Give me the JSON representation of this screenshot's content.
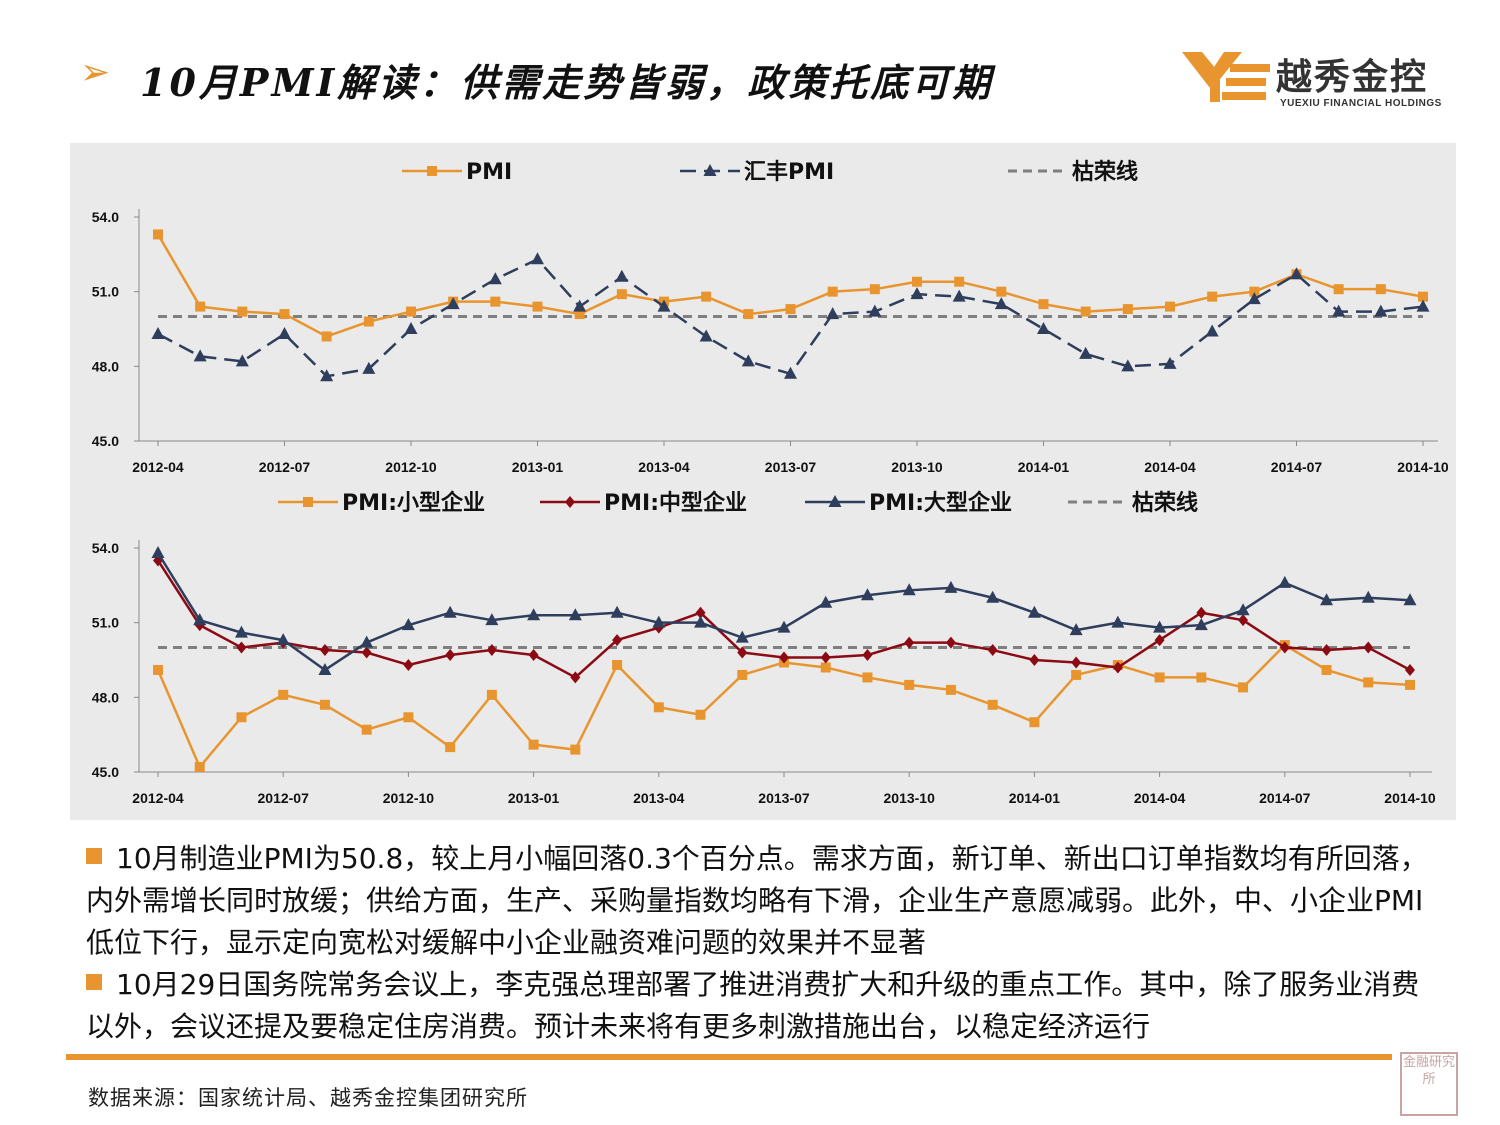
{
  "slide": {
    "arrow": "➢",
    "title": "10月PMI解读：供需走势皆弱，政策托底可期"
  },
  "logo": {
    "name_cn": "越秀金控",
    "name_en": "YUEXIU FINANCIAL HOLDINGS"
  },
  "colors": {
    "accent": "#e8952f",
    "navy": "#2e3e5c",
    "darkred": "#8b0a14",
    "grey": "#7f7f7f"
  },
  "chart_data": [
    {
      "type": "line",
      "title": "",
      "xlabel": "",
      "ylabel": "",
      "ylim": [
        45.0,
        54.0
      ],
      "yticks": [
        "45.0",
        "48.0",
        "51.0",
        "54.0"
      ],
      "xticks": [
        "2012-04",
        "2012-07",
        "2012-10",
        "2013-01",
        "2013-04",
        "2013-07",
        "2013-10",
        "2014-01",
        "2014-04",
        "2014-07",
        "2014-10"
      ],
      "categories": [
        "2012-04",
        "2012-05",
        "2012-06",
        "2012-07",
        "2012-08",
        "2012-09",
        "2012-10",
        "2012-11",
        "2012-12",
        "2013-01",
        "2013-02",
        "2013-03",
        "2013-04",
        "2013-05",
        "2013-06",
        "2013-07",
        "2013-08",
        "2013-09",
        "2013-10",
        "2013-11",
        "2013-12",
        "2014-01",
        "2014-02",
        "2014-03",
        "2014-04",
        "2014-05",
        "2014-06",
        "2014-07",
        "2014-08",
        "2014-09",
        "2014-10"
      ],
      "legend": [
        "PMI",
        "汇丰PMI",
        "枯荣线"
      ],
      "series": [
        {
          "name": "PMI",
          "style": "orange-square",
          "values": [
            53.3,
            50.4,
            50.2,
            50.1,
            49.2,
            49.8,
            50.2,
            50.6,
            50.6,
            50.4,
            50.1,
            50.9,
            50.6,
            50.8,
            50.1,
            50.3,
            51.0,
            51.1,
            51.4,
            51.4,
            51.0,
            50.5,
            50.2,
            50.3,
            50.4,
            50.8,
            51.0,
            51.7,
            51.1,
            51.1,
            50.8
          ]
        },
        {
          "name": "汇丰PMI",
          "style": "navy-triangle-dashed",
          "values": [
            49.3,
            48.4,
            48.2,
            49.3,
            47.6,
            47.9,
            49.5,
            50.5,
            51.5,
            52.3,
            50.4,
            51.6,
            50.4,
            49.2,
            48.2,
            47.7,
            50.1,
            50.2,
            50.9,
            50.8,
            50.5,
            49.5,
            48.5,
            48.0,
            48.1,
            49.4,
            50.7,
            51.7,
            50.2,
            50.2,
            50.4
          ]
        },
        {
          "name": "枯荣线",
          "style": "grey-dashed",
          "values": [
            50,
            50,
            50,
            50,
            50,
            50,
            50,
            50,
            50,
            50,
            50,
            50,
            50,
            50,
            50,
            50,
            50,
            50,
            50,
            50,
            50,
            50,
            50,
            50,
            50,
            50,
            50,
            50,
            50,
            50,
            50
          ]
        }
      ]
    },
    {
      "type": "line",
      "title": "",
      "xlabel": "",
      "ylabel": "",
      "ylim": [
        45.0,
        54.0
      ],
      "yticks": [
        "45.0",
        "48.0",
        "51.0",
        "54.0"
      ],
      "xticks": [
        "2012-04",
        "2012-07",
        "2012-10",
        "2013-01",
        "2013-04",
        "2013-07",
        "2013-10",
        "2014-01",
        "2014-04",
        "2014-07",
        "2014-10"
      ],
      "categories": [
        "2012-04",
        "2012-05",
        "2012-06",
        "2012-07",
        "2012-08",
        "2012-09",
        "2012-10",
        "2012-11",
        "2012-12",
        "2013-01",
        "2013-02",
        "2013-03",
        "2013-04",
        "2013-05",
        "2013-06",
        "2013-07",
        "2013-08",
        "2013-09",
        "2013-10",
        "2013-11",
        "2013-12",
        "2014-01",
        "2014-02",
        "2014-03",
        "2014-04",
        "2014-05",
        "2014-06",
        "2014-07",
        "2014-08",
        "2014-09",
        "2014-10"
      ],
      "legend": [
        "PMI:小型企业",
        "PMI:中型企业",
        "PMI:大型企业",
        "枯荣线"
      ],
      "series": [
        {
          "name": "PMI:小型企业",
          "style": "orange-square",
          "values": [
            49.1,
            45.2,
            47.2,
            48.1,
            47.7,
            46.7,
            47.2,
            46.0,
            48.1,
            46.1,
            45.9,
            49.3,
            47.6,
            47.3,
            48.9,
            49.4,
            49.2,
            48.8,
            48.5,
            48.3,
            47.7,
            47.0,
            48.9,
            49.3,
            48.8,
            48.8,
            48.4,
            50.1,
            49.1,
            48.6,
            48.5
          ]
        },
        {
          "name": "PMI:中型企业",
          "style": "darkred-diamond",
          "values": [
            53.5,
            50.9,
            50.0,
            50.2,
            49.9,
            49.8,
            49.3,
            49.7,
            49.9,
            49.7,
            48.8,
            50.3,
            50.8,
            51.4,
            49.8,
            49.6,
            49.6,
            49.7,
            50.2,
            50.2,
            49.9,
            49.5,
            49.4,
            49.2,
            50.3,
            51.4,
            51.1,
            50.0,
            49.9,
            50.0,
            49.1
          ]
        },
        {
          "name": "PMI:大型企业",
          "style": "navy-triangle",
          "values": [
            53.8,
            51.1,
            50.6,
            50.3,
            49.1,
            50.2,
            50.9,
            51.4,
            51.1,
            51.3,
            51.3,
            51.4,
            51.0,
            51.0,
            50.4,
            50.8,
            51.8,
            52.1,
            52.3,
            52.4,
            52.0,
            51.4,
            50.7,
            51.0,
            50.8,
            50.9,
            51.5,
            52.6,
            51.9,
            52.0,
            51.9
          ]
        },
        {
          "name": "枯荣线",
          "style": "grey-dashed",
          "values": [
            50,
            50,
            50,
            50,
            50,
            50,
            50,
            50,
            50,
            50,
            50,
            50,
            50,
            50,
            50,
            50,
            50,
            50,
            50,
            50,
            50,
            50,
            50,
            50,
            50,
            50,
            50,
            50,
            50,
            50,
            50
          ]
        }
      ]
    }
  ],
  "body": {
    "para1": "10月制造业PMI为50.8，较上月小幅回落0.3个百分点。需求方面，新订单、新出口订单指数均有所回落，内外需增长同时放缓；供给方面，生产、采购量指数均略有下滑，企业生产意愿减弱。此外，中、小企业PMI低位下行，显示定向宽松对缓解中小企业融资难问题的效果并不显著",
    "para2": "10月29日国务院常务会议上，李克强总理部署了推进消费扩大和升级的重点工作。其中，除了服务业消费以外，会议还提及要稳定住房消费。预计未来将有更多刺激措施出台，以稳定经济运行"
  },
  "footer": {
    "source": "数据来源：国家统计局、越秀金控集团研究所",
    "seal_text": "金融研究所"
  }
}
